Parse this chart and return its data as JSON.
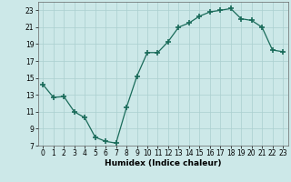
{
  "x": [
    0,
    1,
    2,
    3,
    4,
    5,
    6,
    7,
    8,
    9,
    10,
    11,
    12,
    13,
    14,
    15,
    16,
    17,
    18,
    19,
    20,
    21,
    22,
    23
  ],
  "y": [
    14.2,
    12.7,
    12.8,
    11.0,
    10.3,
    8.0,
    7.5,
    7.3,
    11.5,
    15.2,
    18.0,
    18.0,
    19.3,
    21.0,
    21.5,
    22.3,
    22.8,
    23.0,
    23.2,
    22.0,
    21.8,
    21.0,
    18.3,
    18.1
  ],
  "line_color": "#1a6b5a",
  "marker": "+",
  "marker_size": 4,
  "marker_lw": 1.2,
  "bg_color": "#cce8e8",
  "grid_color": "#aacfcf",
  "grid_minor_color": "#bbdbdb",
  "xlabel": "Humidex (Indice chaleur)",
  "ylabel": "",
  "xlim": [
    -0.5,
    23.5
  ],
  "ylim": [
    7,
    24
  ],
  "yticks": [
    7,
    9,
    11,
    13,
    15,
    17,
    19,
    21,
    23
  ],
  "xticks": [
    0,
    1,
    2,
    3,
    4,
    5,
    6,
    7,
    8,
    9,
    10,
    11,
    12,
    13,
    14,
    15,
    16,
    17,
    18,
    19,
    20,
    21,
    22,
    23
  ],
  "label_fontsize": 6.5,
  "tick_fontsize": 5.5,
  "line_width": 0.9
}
